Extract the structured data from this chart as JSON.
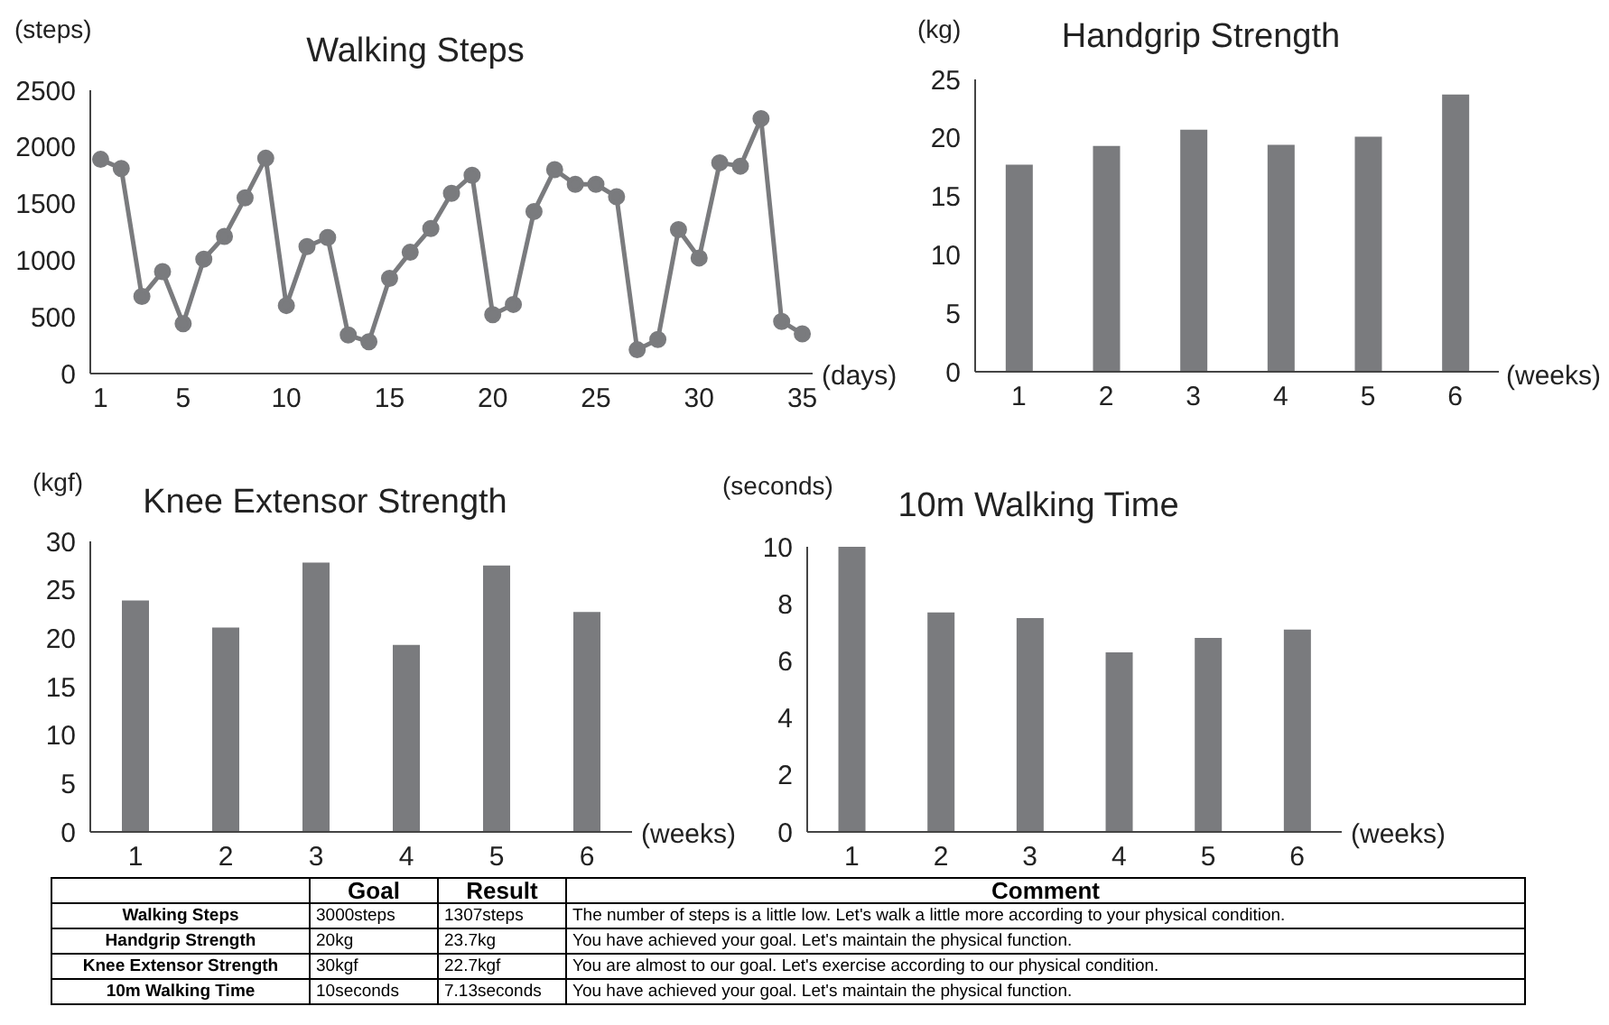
{
  "chart_data": [
    {
      "type": "line",
      "title": "Walking Steps",
      "ylabel": "(steps)",
      "xlabel": "(days)",
      "color": "#7a7b7e",
      "marker": "circle",
      "x": [
        1,
        2,
        3,
        4,
        5,
        6,
        7,
        8,
        9,
        10,
        11,
        12,
        13,
        14,
        15,
        16,
        17,
        18,
        19,
        20,
        21,
        22,
        23,
        24,
        25,
        26,
        27,
        28,
        29,
        30,
        31,
        32,
        33,
        34,
        35
      ],
      "values": [
        1890,
        1810,
        680,
        900,
        440,
        1010,
        1210,
        1550,
        1900,
        600,
        1120,
        1200,
        340,
        280,
        840,
        1070,
        1280,
        1590,
        1750,
        520,
        610,
        1430,
        1800,
        1670,
        1670,
        1560,
        210,
        300,
        1270,
        1020,
        1860,
        1830,
        2250,
        460,
        350
      ],
      "xlim": [
        0.5,
        35.5
      ],
      "xticks": [
        1,
        5,
        10,
        15,
        20,
        25,
        30,
        35
      ],
      "ylim": [
        0,
        2500
      ],
      "yticks": [
        0,
        500,
        1000,
        1500,
        2000,
        2500
      ]
    },
    {
      "type": "bar",
      "title": "Handgrip Strength",
      "ylabel": "(kg)",
      "xlabel": "(weeks)",
      "color": "#7a7b7e",
      "categories": [
        "1",
        "2",
        "3",
        "4",
        "5",
        "6"
      ],
      "values": [
        17.7,
        19.3,
        20.7,
        19.4,
        20.1,
        23.7
      ],
      "ylim": [
        0,
        25
      ],
      "yticks": [
        0,
        5,
        10,
        15,
        20,
        25
      ]
    },
    {
      "type": "bar",
      "title": "Knee Extensor Strength",
      "ylabel": "(kgf)",
      "xlabel": "(weeks)",
      "color": "#7a7b7e",
      "categories": [
        "1",
        "2",
        "3",
        "4",
        "5",
        "6"
      ],
      "values": [
        23.9,
        21.1,
        27.8,
        19.3,
        27.5,
        22.7
      ],
      "ylim": [
        0,
        30
      ],
      "yticks": [
        0,
        5,
        10,
        15,
        20,
        25,
        30
      ]
    },
    {
      "type": "bar",
      "title": "10m Walking Time",
      "ylabel": "(seconds)",
      "xlabel": "(weeks)",
      "color": "#7a7b7e",
      "categories": [
        "1",
        "2",
        "3",
        "4",
        "5",
        "6"
      ],
      "values": [
        10.0,
        7.7,
        7.5,
        6.3,
        6.8,
        7.1
      ],
      "ylim": [
        0,
        10
      ],
      "yticks": [
        0,
        2,
        4,
        6,
        8,
        10
      ]
    },
    {
      "type": "other",
      "annotations": [
        "Goal",
        "Result",
        "Comment",
        "Walking Steps",
        "3000steps",
        "1307steps",
        "The number of steps is a little low. Let's walk a little more according to your physical condition.",
        "Handgrip Strength",
        "20kg",
        "23.7kg",
        "You have achieved your goal. Let's maintain the physical function.",
        "Knee Extensor Strength",
        "30kgf",
        "22.7kgf",
        "You are almost to our goal. Let's exercise according to our physical condition.",
        "10m Walking Time",
        "10seconds",
        "7.13seconds",
        "You have achieved your goal. Let's maintain the physical function."
      ]
    }
  ]
}
